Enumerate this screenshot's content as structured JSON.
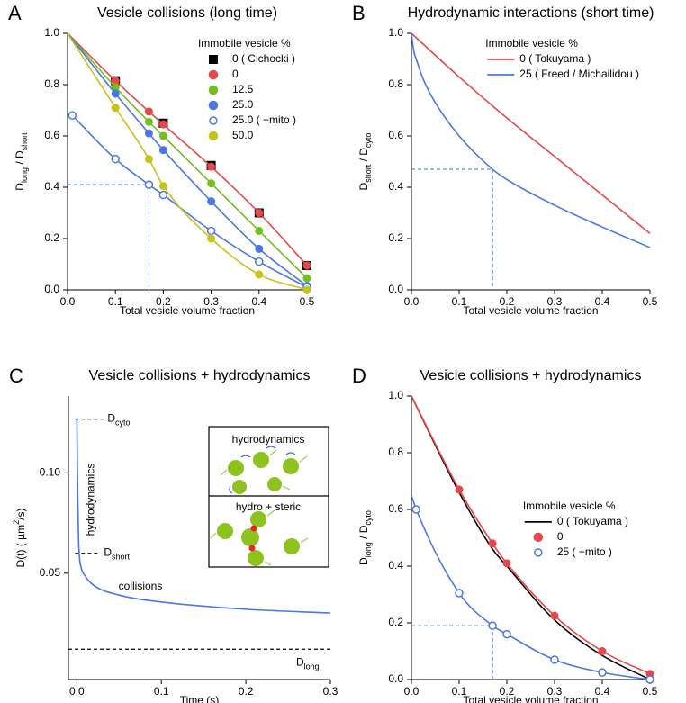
{
  "chart_data": [
    {
      "panel": "A",
      "type": "line",
      "title": "Vesicle collisions (long time)",
      "x_label": "Total vesicle volume fraction",
      "y_label": [
        {
          "text": "D"
        },
        {
          "text": "long",
          "shift": "sub"
        },
        {
          "text": " / D"
        },
        {
          "text": "short",
          "shift": "sub"
        }
      ],
      "xlim": [
        0,
        0.5
      ],
      "ylim": [
        0,
        1
      ],
      "xticks": [
        {
          "value": 0,
          "label": "0.0"
        },
        0.1,
        0.2,
        0.3,
        0.4,
        0.5
      ],
      "yticks": [
        {
          "value": 0,
          "label": "0.0"
        },
        0.2,
        0.4,
        0.6,
        0.8,
        {
          "value": 1,
          "label": "1.0"
        }
      ],
      "legend": "upper right",
      "legend_title": "Immobile vesicle %",
      "guide": {
        "x": 0.17,
        "y": 0.41
      },
      "series": [
        {
          "name": "0 ( Cichocki )",
          "color": "#000000",
          "marker": "square",
          "line": false,
          "x": [
            0.1,
            0.2,
            0.3,
            0.4,
            0.5
          ],
          "values": [
            0.815,
            0.65,
            0.485,
            0.3,
            0.095
          ]
        },
        {
          "name": "0",
          "color": "#e8474a",
          "marker": "circle",
          "line_from": [
            0,
            1
          ],
          "x": [
            0.1,
            0.17,
            0.2,
            0.3,
            0.4,
            0.5
          ],
          "values": [
            0.815,
            0.695,
            0.645,
            0.48,
            0.3,
            0.095
          ]
        },
        {
          "name": "12.5",
          "color": "#72bf1f",
          "marker": "circle",
          "line_from": [
            0,
            1
          ],
          "x": [
            0.1,
            0.17,
            0.2,
            0.3,
            0.4,
            0.5
          ],
          "values": [
            0.79,
            0.655,
            0.6,
            0.415,
            0.23,
            0.045
          ]
        },
        {
          "name": "25.0",
          "color": "#4a78e0",
          "marker": "circle",
          "line_from": [
            0,
            1
          ],
          "x": [
            0.1,
            0.17,
            0.2,
            0.3,
            0.4,
            0.5
          ],
          "values": [
            0.765,
            0.61,
            0.545,
            0.345,
            0.16,
            0.015
          ]
        },
        {
          "name": "25.0 ( +mito )",
          "color": "#4a78e0",
          "marker": "open-circle",
          "x": [
            0.01,
            0.1,
            0.17,
            0.2,
            0.3,
            0.4,
            0.5
          ],
          "values": [
            0.68,
            0.51,
            0.41,
            0.37,
            0.23,
            0.11,
            0.01
          ]
        },
        {
          "name": "50.0",
          "color": "#c8c21c",
          "marker": "circle",
          "line_from": [
            0,
            1
          ],
          "x": [
            0.1,
            0.17,
            0.2,
            0.3,
            0.4,
            0.5
          ],
          "values": [
            0.71,
            0.51,
            0.405,
            0.2,
            0.06,
            0.0
          ]
        }
      ]
    },
    {
      "panel": "B",
      "type": "line",
      "title": "Hydrodynamic interactions (short time)",
      "x_label": "Total vesicle volume fraction",
      "y_label": [
        {
          "text": "D"
        },
        {
          "text": "short",
          "shift": "sub"
        },
        {
          "text": " / D"
        },
        {
          "text": "cyto",
          "shift": "sub"
        }
      ],
      "xlim": [
        0,
        0.5
      ],
      "ylim": [
        0,
        1
      ],
      "xticks": [
        {
          "value": 0,
          "label": "0.0"
        },
        0.1,
        0.2,
        0.3,
        0.4,
        0.5
      ],
      "yticks": [
        {
          "value": 0,
          "label": "0.0"
        },
        0.2,
        0.4,
        0.6,
        0.8,
        {
          "value": 1,
          "label": "1.0"
        }
      ],
      "legend": "upper right",
      "legend_title": "Immobile vesicle %",
      "guide": {
        "x": 0.17,
        "y": 0.47
      },
      "series": [
        {
          "name": "0  ( Tokuyama )",
          "color": "#e8474a",
          "marker": "none",
          "x": [
            0,
            0.1,
            0.2,
            0.3,
            0.4,
            0.5
          ],
          "values": [
            1,
            0.83,
            0.67,
            0.52,
            0.37,
            0.22
          ]
        },
        {
          "name": "25 ( Freed / Michailidou )",
          "color": "#4a78e0",
          "marker": "none",
          "x": [
            0,
            0.005,
            0.01,
            0.025,
            0.05,
            0.1,
            0.17,
            0.2,
            0.3,
            0.4,
            0.5
          ],
          "values": [
            1,
            0.93,
            0.9,
            0.82,
            0.73,
            0.6,
            0.47,
            0.43,
            0.33,
            0.245,
            0.165
          ]
        }
      ]
    },
    {
      "panel": "C",
      "type": "line",
      "title": "Vesicle collisions + hydrodynamics",
      "x_label": "Time (s)",
      "y_label": [
        {
          "text": "D(t)  ( µm"
        },
        {
          "text": "2",
          "shift": "super"
        },
        {
          "text": "/s)"
        }
      ],
      "xlim": [
        -0.01,
        0.3
      ],
      "ylim": [
        0.024,
        0.17
      ],
      "log_y": true,
      "xticks": [
        {
          "value": 0,
          "label": "0.0"
        },
        0.1,
        0.2,
        0.3
      ],
      "yticks": [
        0.05,
        {
          "value": 0.1,
          "label": "0.10"
        }
      ],
      "series": [
        {
          "color": "#4a78e0",
          "marker": "none",
          "x": [
            0,
            0.0005,
            0.001,
            0.002,
            0.003,
            0.005,
            0.01,
            0.02,
            0.05,
            0.1,
            0.2,
            0.3
          ],
          "values": [
            0.145,
            0.11,
            0.086,
            0.063,
            0.056,
            0.052,
            0.049,
            0.046,
            0.043,
            0.041,
            0.039,
            0.038
          ]
        }
      ],
      "levels": [
        {
          "label": [
            {
              "text": "D"
            },
            {
              "text": "cyto",
              "shift": "sub"
            }
          ],
          "value": 0.145
        },
        {
          "label": [
            {
              "text": "D"
            },
            {
              "text": "short",
              "shift": "sub"
            }
          ],
          "value": 0.0574
        },
        {
          "label": [
            {
              "text": "D"
            },
            {
              "text": "long",
              "shift": "sub"
            }
          ],
          "value": 0.0296
        }
      ],
      "annotations": [
        "hydrodynamics",
        "collisions"
      ],
      "inset": {
        "top": "hydrodynamics",
        "bottom": "hydro + steric"
      }
    },
    {
      "panel": "D",
      "type": "line",
      "title": "Vesicle collisions + hydrodynamics",
      "x_label": "Total vesicle volume fraction",
      "y_label": [
        {
          "text": "D"
        },
        {
          "text": "long",
          "shift": "sub"
        },
        {
          "text": " / D"
        },
        {
          "text": "cyto",
          "shift": "sub"
        }
      ],
      "xlim": [
        0,
        0.5
      ],
      "ylim": [
        0,
        1
      ],
      "xticks": [
        {
          "value": 0,
          "label": "0.0"
        },
        0.1,
        0.2,
        0.3,
        0.4,
        0.5
      ],
      "yticks": [
        {
          "value": 0,
          "label": "0.0"
        },
        0.2,
        0.4,
        0.6,
        0.8,
        {
          "value": 1,
          "label": "1.0"
        }
      ],
      "legend": "center right",
      "legend_title": "Immobile vesicle %",
      "guide": {
        "x": 0.17,
        "y": 0.19
      },
      "series": [
        {
          "name": "0 ( Tokuyama )",
          "color": "#000000",
          "marker": "none",
          "x": [
            0,
            0.1,
            0.17,
            0.2,
            0.3,
            0.4,
            0.5
          ],
          "values": [
            1,
            0.66,
            0.46,
            0.4,
            0.21,
            0.085,
            0.0
          ]
        },
        {
          "name": "0",
          "color": "#e8474a",
          "marker": "circle",
          "line_from": [
            0,
            1
          ],
          "x": [
            0.1,
            0.17,
            0.2,
            0.3,
            0.4,
            0.5
          ],
          "values": [
            0.67,
            0.48,
            0.41,
            0.225,
            0.1,
            0.02
          ]
        },
        {
          "name": "25 ( +mito )",
          "color": "#4a78e0",
          "marker": "open-circle",
          "line_from": [
            0,
            0.65
          ],
          "x": [
            0.01,
            0.1,
            0.17,
            0.2,
            0.3,
            0.4,
            0.5
          ],
          "values": [
            0.6,
            0.305,
            0.19,
            0.16,
            0.07,
            0.025,
            0.0
          ]
        }
      ]
    }
  ]
}
